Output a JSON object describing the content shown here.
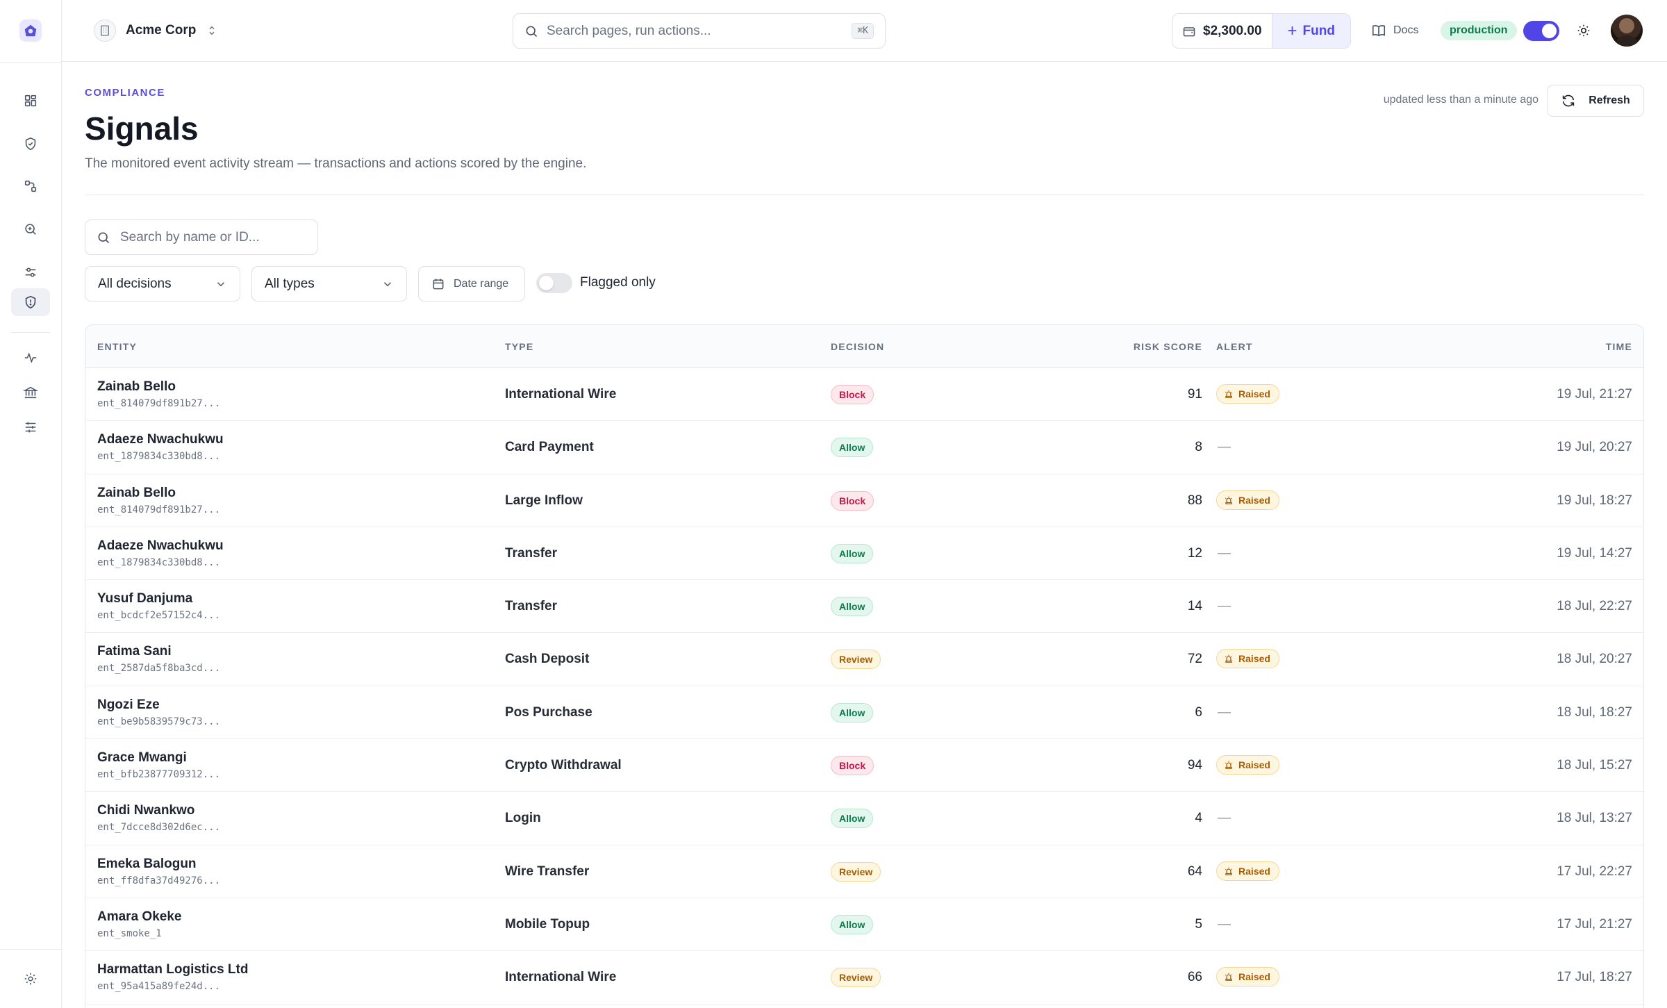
{
  "topbar": {
    "org_name": "Acme Corp",
    "search_placeholder": "Search pages, run actions...",
    "search_shortcut": "⌘K",
    "balance": "$2,300.00",
    "fund_label": "Fund",
    "docs_label": "Docs",
    "environment": "production"
  },
  "sidebar": {
    "items": [
      {
        "icon": "dashboard-icon"
      },
      {
        "icon": "shield-check-icon"
      },
      {
        "icon": "workflow-icon"
      },
      {
        "icon": "search-zoom-icon"
      },
      {
        "icon": "sliders-icon"
      },
      {
        "icon": "shield-alert-icon",
        "active": true
      },
      {
        "icon": "activity-icon"
      },
      {
        "icon": "bank-icon"
      },
      {
        "icon": "settings-sliders-icon"
      }
    ],
    "footer_icon": "gear-icon"
  },
  "page": {
    "eyebrow": "COMPLIANCE",
    "title": "Signals",
    "subtitle": "The monitored event activity stream — transactions and actions scored by the engine.",
    "updated": "updated less than a minute ago",
    "refresh_label": "Refresh"
  },
  "filters": {
    "search_placeholder": "Search by name or ID...",
    "decision_select": "All decisions",
    "type_select": "All types",
    "date_range_label": "Date range",
    "flagged_label": "Flagged only"
  },
  "table": {
    "columns": {
      "entity": "ENTITY",
      "type": "TYPE",
      "decision": "DECISION",
      "risk": "RISK SCORE",
      "alert": "ALERT",
      "time": "TIME"
    },
    "rows": [
      {
        "name": "Zainab Bello",
        "id": "ent_814079df891b27...",
        "type": "International Wire",
        "decision": "Block",
        "risk": "91",
        "alert": "Raised",
        "time": "19 Jul, 21:27"
      },
      {
        "name": "Adaeze Nwachukwu",
        "id": "ent_1879834c330bd8...",
        "type": "Card Payment",
        "decision": "Allow",
        "risk": "8",
        "alert": "—",
        "time": "19 Jul, 20:27"
      },
      {
        "name": "Zainab Bello",
        "id": "ent_814079df891b27...",
        "type": "Large Inflow",
        "decision": "Block",
        "risk": "88",
        "alert": "Raised",
        "time": "19 Jul, 18:27"
      },
      {
        "name": "Adaeze Nwachukwu",
        "id": "ent_1879834c330bd8...",
        "type": "Transfer",
        "decision": "Allow",
        "risk": "12",
        "alert": "—",
        "time": "19 Jul, 14:27"
      },
      {
        "name": "Yusuf Danjuma",
        "id": "ent_bcdcf2e57152c4...",
        "type": "Transfer",
        "decision": "Allow",
        "risk": "14",
        "alert": "—",
        "time": "18 Jul, 22:27"
      },
      {
        "name": "Fatima Sani",
        "id": "ent_2587da5f8ba3cd...",
        "type": "Cash Deposit",
        "decision": "Review",
        "risk": "72",
        "alert": "Raised",
        "time": "18 Jul, 20:27"
      },
      {
        "name": "Ngozi Eze",
        "id": "ent_be9b5839579c73...",
        "type": "Pos Purchase",
        "decision": "Allow",
        "risk": "6",
        "alert": "—",
        "time": "18 Jul, 18:27"
      },
      {
        "name": "Grace Mwangi",
        "id": "ent_bfb23877709312...",
        "type": "Crypto Withdrawal",
        "decision": "Block",
        "risk": "94",
        "alert": "Raised",
        "time": "18 Jul, 15:27"
      },
      {
        "name": "Chidi Nwankwo",
        "id": "ent_7dcce8d302d6ec...",
        "type": "Login",
        "decision": "Allow",
        "risk": "4",
        "alert": "—",
        "time": "18 Jul, 13:27"
      },
      {
        "name": "Emeka Balogun",
        "id": "ent_ff8dfa37d49276...",
        "type": "Wire Transfer",
        "decision": "Review",
        "risk": "64",
        "alert": "Raised",
        "time": "17 Jul, 22:27"
      },
      {
        "name": "Amara Okeke",
        "id": "ent_smoke_1",
        "type": "Mobile Topup",
        "decision": "Allow",
        "risk": "5",
        "alert": "—",
        "time": "17 Jul, 21:27"
      },
      {
        "name": "Harmattan Logistics Ltd",
        "id": "ent_95a415a89fe24d...",
        "type": "International Wire",
        "decision": "Review",
        "risk": "66",
        "alert": "Raised",
        "time": "17 Jul, 18:27"
      }
    ]
  },
  "colors": {
    "accent": "#4f46e5",
    "block": "#c2184b",
    "allow": "#0f7a4d",
    "review": "#a65d05"
  }
}
